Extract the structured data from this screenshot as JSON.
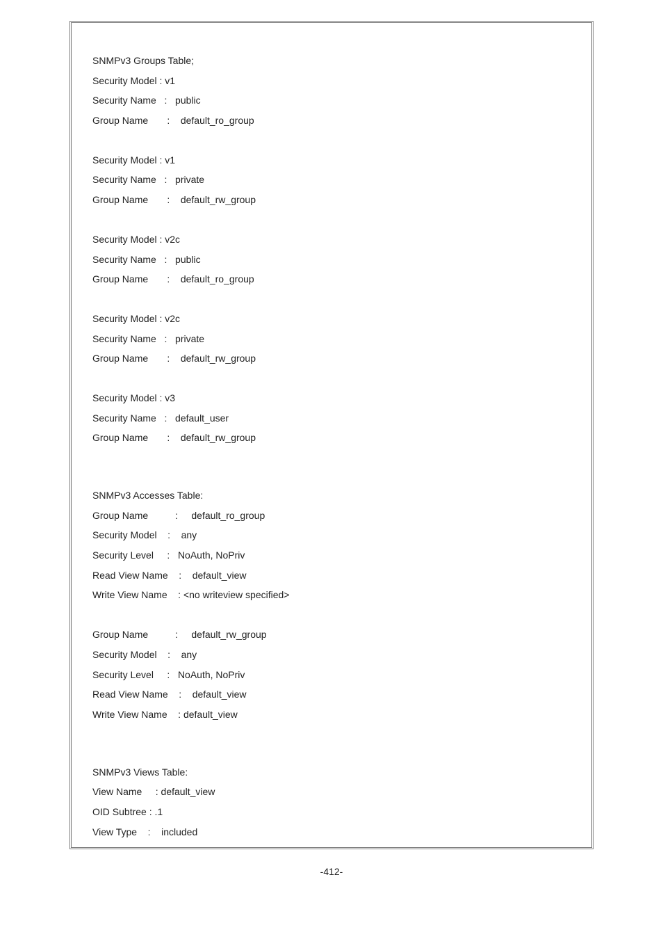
{
  "page_number": "-412-",
  "colors": {
    "text": "#222222",
    "frame_border": "#7a7a7a",
    "background": "#ffffff"
  },
  "typography": {
    "font_family": "Arial, Helvetica, sans-serif",
    "font_size_pt": 10.5,
    "line_height": 2.05
  },
  "sections": {
    "groups_table": {
      "header": "SNMPv3 Groups Table;",
      "entries": [
        {
          "security_model": "Security Model : v1",
          "security_name": "Security Name   :   public",
          "group_name": "Group Name       :    default_ro_group"
        },
        {
          "security_model": "Security Model : v1",
          "security_name": "Security Name   :   private",
          "group_name": "Group Name       :    default_rw_group"
        },
        {
          "security_model": "Security Model : v2c",
          "security_name": "Security Name   :   public",
          "group_name": "Group Name       :    default_ro_group"
        },
        {
          "security_model": "Security Model : v2c",
          "security_name": "Security Name   :   private",
          "group_name": "Group Name       :    default_rw_group"
        },
        {
          "security_model": "Security Model : v3",
          "security_name": "Security Name   :   default_user",
          "group_name": "Group Name       :    default_rw_group"
        }
      ]
    },
    "accesses_table": {
      "header": "SNMPv3 Accesses Table:",
      "entries": [
        {
          "group_name": "Group Name          :     default_ro_group",
          "security_model": "Security Model    :    any",
          "security_level": "Security Level     :   NoAuth, NoPriv",
          "read_view_name": "Read View Name    :    default_view",
          "write_view_name": "Write View Name    : <no writeview specified>"
        },
        {
          "group_name": "Group Name          :     default_rw_group",
          "security_model": "Security Model    :    any",
          "security_level": "Security Level     :   NoAuth, NoPriv",
          "read_view_name": "Read View Name    :    default_view",
          "write_view_name": "Write View Name    : default_view"
        }
      ]
    },
    "views_table": {
      "header": "SNMPv3 Views Table:",
      "entry": {
        "view_name": "View Name     : default_view",
        "oid_subtree": "OID Subtree : .1",
        "view_type": "View Type    :    included"
      }
    }
  }
}
